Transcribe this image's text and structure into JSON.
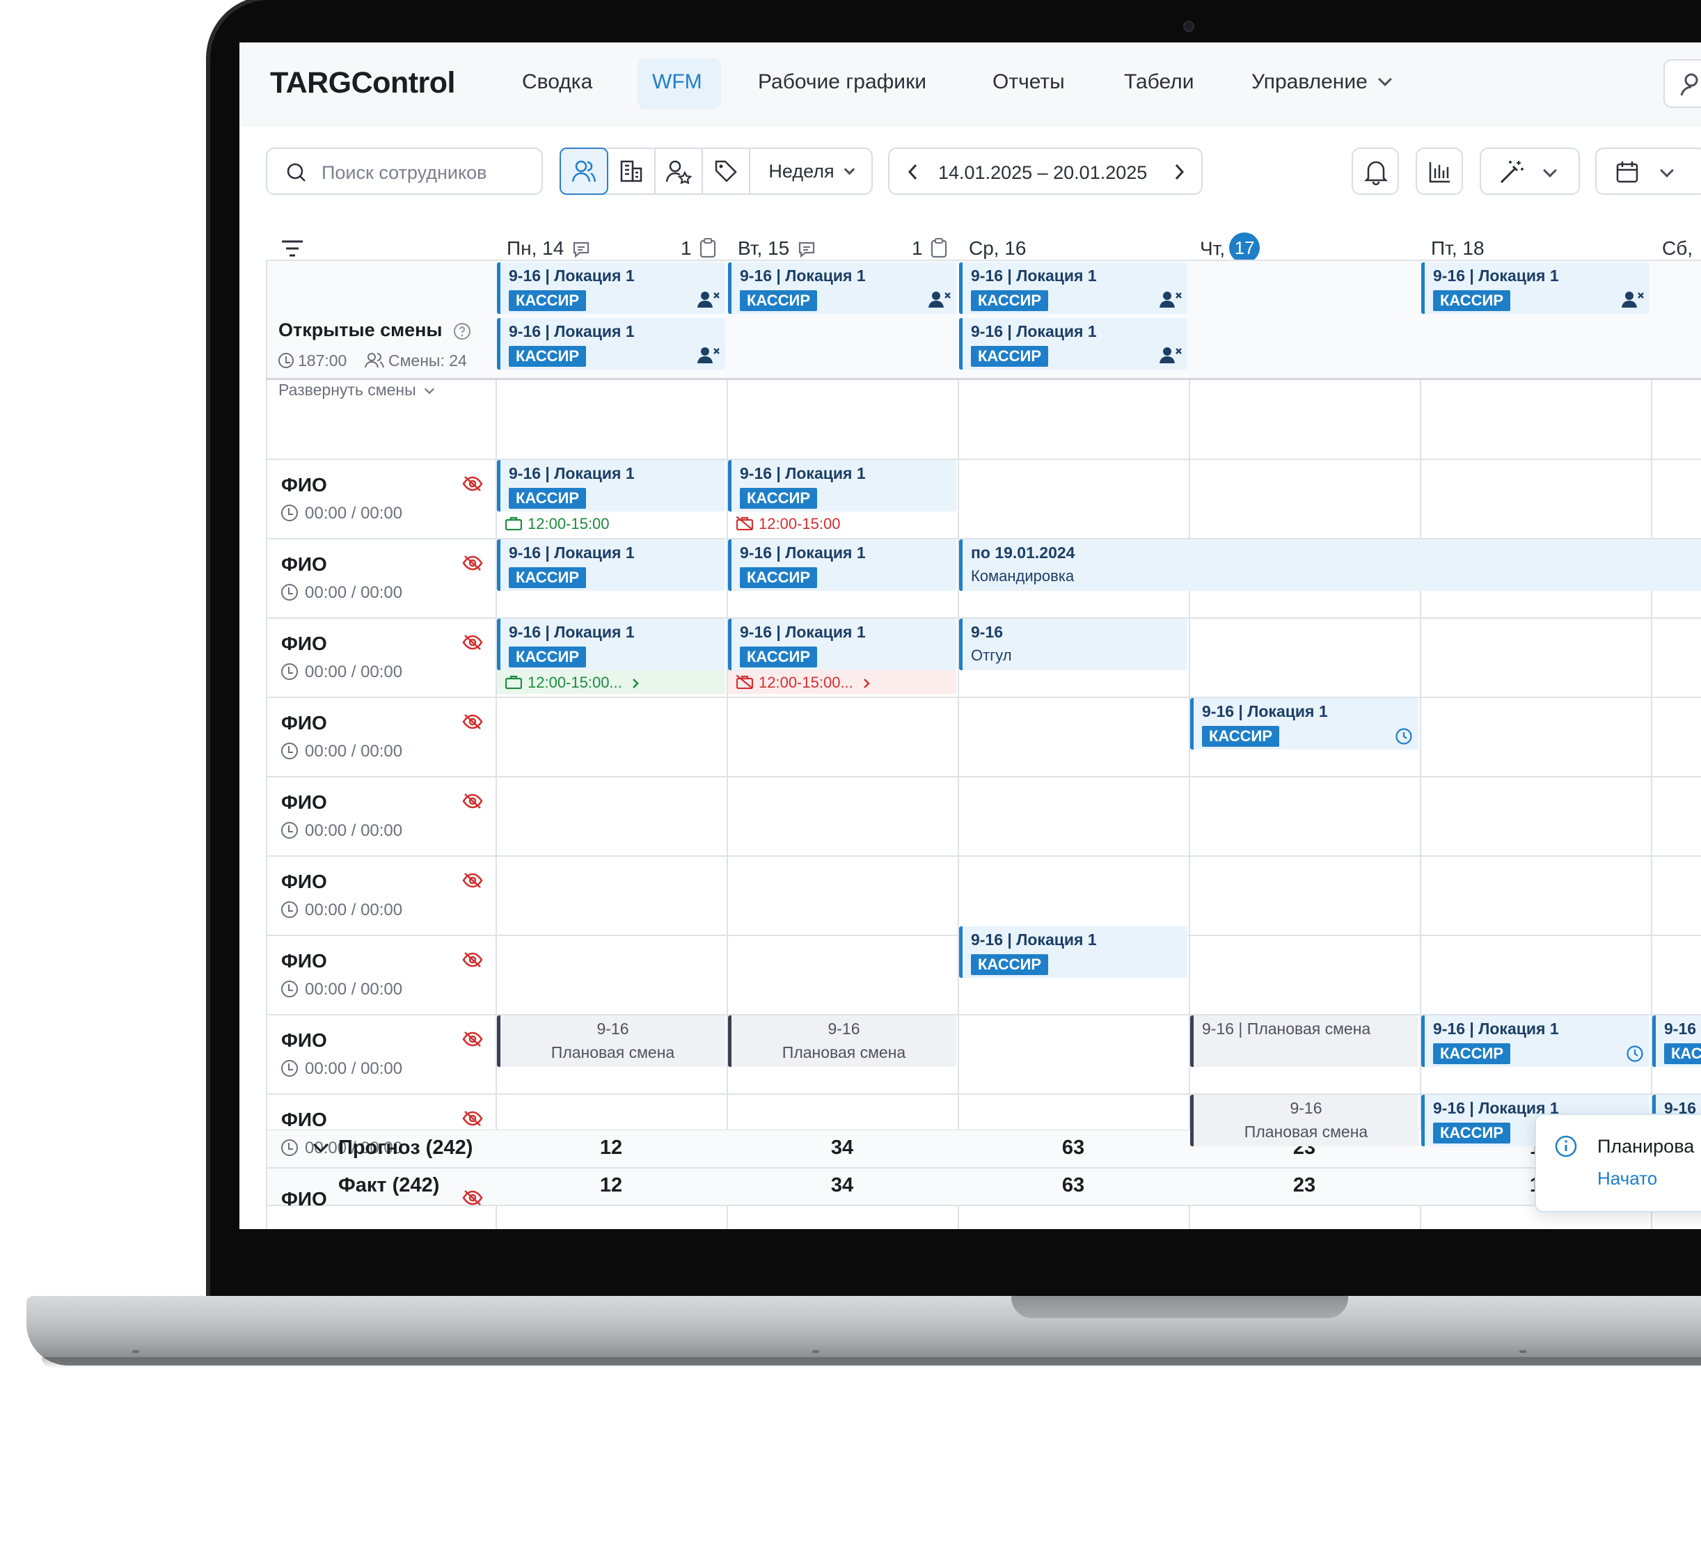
{
  "app": {
    "logo": "TARGControl",
    "nav": [
      {
        "label": "Сводка"
      },
      {
        "label": "WFM",
        "active": true
      },
      {
        "label": "Рабочие графики"
      },
      {
        "label": "Отчеты"
      },
      {
        "label": "Табели"
      },
      {
        "label": "Управление"
      }
    ]
  },
  "toolbar": {
    "search_placeholder": "Поиск сотрудников",
    "view_buttons": [
      "people-icon",
      "building-icon",
      "people-star-icon",
      "tag-icon"
    ],
    "period": "Неделя",
    "date_range": "14.01.2025 – 20.01.2025",
    "right_buttons": [
      "bell-icon",
      "bar-chart-icon",
      "magic-wand-icon",
      "calendar-icon"
    ]
  },
  "days": [
    {
      "label": "Пн, 14",
      "count": "1"
    },
    {
      "label": "Вт, 15",
      "count": "1"
    },
    {
      "label": "Ср, 16"
    },
    {
      "label": "Чт,",
      "today_number": "17"
    },
    {
      "label": "Пт, 18"
    },
    {
      "label": "Сб,"
    }
  ],
  "open_shifts": {
    "title": "Открытые смены",
    "hours": "187:00",
    "shifts": "Смены: 24",
    "expand": "Развернуть смены"
  },
  "shift": {
    "title": "9-16 | Локация 1",
    "role": "КАССИР",
    "short_title": "9-16",
    "plan_title": "9-16 | Плановая смена",
    "plan_label": "Плановая смена",
    "trip_title": "по 19.01.2024",
    "trip_label": "Командировка",
    "off_label": "Отгул",
    "break_time": "12:00-15:00",
    "break_time_short": "12:00-15:00..."
  },
  "employees": [
    {
      "name": "ФИО",
      "time": "00:00 / 00:00"
    },
    {
      "name": "ФИО",
      "time": "00:00 / 00:00"
    },
    {
      "name": "ФИО",
      "time": "00:00 / 00:00"
    },
    {
      "name": "ФИО",
      "time": "00:00 / 00:00"
    },
    {
      "name": "ФИО",
      "time": "00:00 / 00:00"
    },
    {
      "name": "ФИО",
      "time": "00:00 / 00:00"
    },
    {
      "name": "ФИО",
      "time": "00:00 / 00:00"
    },
    {
      "name": "ФИО",
      "time": "00:00 / 00:00"
    },
    {
      "name": "ФИО",
      "time": "00:00 / 00:00"
    },
    {
      "name": "ФИО"
    }
  ],
  "totals": {
    "forecast_label": "Прогноз (242)",
    "fact_label": "Факт (242)",
    "forecast": [
      "12",
      "34",
      "63",
      "23",
      "1"
    ],
    "fact": [
      "12",
      "34",
      "63",
      "23",
      "1"
    ]
  },
  "toast": {
    "title": "Планирова",
    "status": "Начато"
  },
  "colors": {
    "accent": "#1e7fc8",
    "ok": "#1d8a3c",
    "error": "#d32f2f"
  }
}
